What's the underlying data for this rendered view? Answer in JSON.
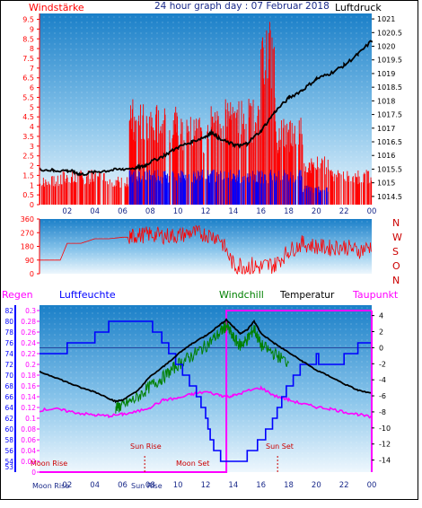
{
  "header": {
    "left_label": "Windstärke",
    "title": "24 hour graph day : 07 Februar 2018",
    "right_label": "Luftdruck"
  },
  "x_ticks": [
    "02",
    "04",
    "06",
    "08",
    "10",
    "12",
    "14",
    "16",
    "18",
    "20",
    "22",
    "00"
  ],
  "wind_direction_labels": [
    "N",
    "W",
    "S",
    "O",
    "N"
  ],
  "lower_header": {
    "regen": "Regen",
    "luftfeuchte": "Luftfeuchte",
    "windchill": "Windchill",
    "temperatur": "Temperatur",
    "taupunkt": "Taupunkt"
  },
  "annotations": {
    "moon_rise": "Moon Rise",
    "sun_rise": "Sun Rise",
    "moon_set": "Moon Set",
    "sun_set": "Sun Set",
    "bottom_moon_rise": "Moon Rise",
    "bottom_sun_rise": "Sun Rise"
  },
  "colors": {
    "chart_bg_top": "#1a7fc8",
    "chart_bg_bottom": "#e8f4fc",
    "wind": "#ff0000",
    "gust": "#0000ff",
    "pressure": "#000000",
    "humidity": "#0000ff",
    "temperature": "#000000",
    "windchill": "#008000",
    "dewpoint": "#ff00ff",
    "rain": "#ff00ff",
    "left_axis": "#ff0000",
    "rain_axis": "#0000ff"
  },
  "chart_data": [
    {
      "type": "line",
      "name": "wind-pressure",
      "x_range": [
        0,
        24
      ],
      "y_left_label": "Windstärke",
      "y_left_ticks": [
        "0",
        "0.5",
        "1",
        "1.5",
        "2",
        "2.5",
        "3",
        "3.5",
        "4",
        "4.5",
        "5",
        "5.5",
        "6",
        "6.5",
        "7",
        "7.5",
        "8",
        "8.5",
        "9",
        "9.5"
      ],
      "y_left_range": [
        0,
        9.8
      ],
      "y_right_label": "Luftdruck",
      "y_right_ticks": [
        "1014.5",
        "1015",
        "1015.5",
        "1016",
        "1016.5",
        "1017",
        "1017.5",
        "1018",
        "1018.5",
        "1019",
        "1019.5",
        "1020",
        "1020.5",
        "1021"
      ],
      "y_right_range": [
        1014.2,
        1021.2
      ],
      "series": [
        {
          "name": "Luftdruck",
          "x": [
            0,
            1,
            2,
            2.5,
            3,
            4,
            5,
            6,
            7,
            7.5,
            8,
            9,
            10,
            11,
            12,
            12.5,
            13,
            14,
            14.5,
            15,
            16,
            17,
            18,
            19,
            20,
            21,
            22,
            23,
            24
          ],
          "y": [
            1015.5,
            1015.45,
            1015.45,
            1015.4,
            1015.3,
            1015.4,
            1015.45,
            1015.5,
            1015.55,
            1015.6,
            1015.75,
            1016.0,
            1016.3,
            1016.5,
            1016.7,
            1016.85,
            1016.6,
            1016.4,
            1016.35,
            1016.45,
            1016.9,
            1017.6,
            1018.1,
            1018.4,
            1018.8,
            1019.0,
            1019.3,
            1019.7,
            1020.2
          ]
        }
      ],
      "wind_level_by_hour": [
        {
          "from": 0,
          "to": 1.5,
          "wind": 0,
          "gust": 1.5
        },
        {
          "from": 1.5,
          "to": 3,
          "wind": 0,
          "gust": 1.8
        },
        {
          "from": 3,
          "to": 5,
          "wind": 0,
          "gust": 1.8
        },
        {
          "from": 5,
          "to": 6.5,
          "wind": 0,
          "gust": 1.5
        },
        {
          "from": 6.5,
          "to": 8,
          "wind": 1.8,
          "gust": 5.5
        },
        {
          "from": 8,
          "to": 10,
          "wind": 1.8,
          "gust": 5.5
        },
        {
          "from": 10,
          "to": 12,
          "wind": 1.8,
          "gust": 4.5
        },
        {
          "from": 12,
          "to": 14,
          "wind": 1.8,
          "gust": 5.5
        },
        {
          "from": 14,
          "to": 16,
          "wind": 1.8,
          "gust": 5.5
        },
        {
          "from": 16,
          "to": 17,
          "wind": 1.8,
          "gust": 9.5
        },
        {
          "from": 17,
          "to": 19,
          "wind": 1.8,
          "gust": 4.5
        },
        {
          "from": 19,
          "to": 21,
          "wind": 1.0,
          "gust": 2.5
        },
        {
          "from": 21,
          "to": 22.5,
          "wind": 0,
          "gust": 1.8
        },
        {
          "from": 22.5,
          "to": 24,
          "wind": 0,
          "gust": 1.8
        }
      ]
    },
    {
      "type": "line",
      "name": "wind-direction",
      "x_range": [
        0,
        24
      ],
      "y_ticks": [
        "0",
        "90",
        "180",
        "270",
        "360"
      ],
      "y_range": [
        0,
        360
      ],
      "series": [
        {
          "name": "Windrichtung",
          "x": [
            0,
            1.5,
            2,
            3,
            4,
            5,
            6,
            6.5,
            7,
            8,
            9,
            10,
            11,
            12,
            13,
            14,
            15,
            16,
            17,
            18,
            19,
            20,
            21,
            22,
            23,
            24
          ],
          "y": [
            90,
            90,
            200,
            200,
            230,
            230,
            240,
            240,
            250,
            260,
            250,
            250,
            270,
            260,
            240,
            60,
            50,
            40,
            60,
            150,
            200,
            180,
            170,
            180,
            150,
            180
          ]
        }
      ]
    },
    {
      "type": "line",
      "name": "temperature-humidity",
      "x_range": [
        0,
        24
      ],
      "y_left1_ticks": [
        "53",
        "54",
        "56",
        "58",
        "60",
        "62",
        "64",
        "66",
        "68",
        "70",
        "72",
        "74",
        "76",
        "78",
        "80",
        "82"
      ],
      "y_left1_range": [
        52,
        83
      ],
      "y_left2_ticks": [
        "0",
        "0.02",
        "0.04",
        "0.06",
        "0.08",
        "0.1",
        "0.12",
        "0.14",
        "0.16",
        "0.18",
        "0.2",
        "0.22",
        "0.24",
        "0.26",
        "0.28",
        "0.3"
      ],
      "y_left2_range": [
        0,
        0.31
      ],
      "y_right_ticks": [
        "4",
        "2",
        "0",
        "-2",
        "-4",
        "-6",
        "-8",
        "-10",
        "-12",
        "-14"
      ],
      "y_right_range": [
        -15.5,
        5.3
      ],
      "series": [
        {
          "name": "Luftfeuchte",
          "x": [
            0,
            1,
            1.5,
            2,
            3,
            4,
            5,
            6,
            6.5,
            7,
            8,
            9,
            10,
            11,
            12,
            12.5,
            13,
            13.5,
            14,
            14.5,
            15,
            15.5,
            16,
            17,
            18,
            19,
            20,
            21,
            22,
            23,
            24
          ],
          "y": [
            73,
            73,
            74,
            75,
            76,
            77,
            79,
            80,
            80,
            79,
            79,
            76,
            72,
            68,
            62,
            57,
            55,
            53,
            54,
            53,
            55,
            56,
            58,
            62,
            68,
            72,
            73,
            72,
            73,
            75,
            76
          ]
        },
        {
          "name": "Temperatur",
          "x": [
            0,
            1,
            2,
            3,
            4,
            5,
            5.5,
            6,
            7,
            8,
            9,
            10,
            11,
            12,
            13,
            13.5,
            14,
            14.5,
            15,
            15.5,
            16,
            17,
            18,
            19,
            20,
            21,
            22,
            23,
            24
          ],
          "y": [
            -3.0,
            -3.6,
            -4.3,
            -5.0,
            -5.5,
            -6.3,
            -6.7,
            -6.5,
            -5.5,
            -3.6,
            -2.3,
            -0.8,
            0.5,
            1.5,
            2.8,
            3.5,
            2.6,
            1.8,
            2.2,
            3.3,
            1.8,
            0.5,
            -0.6,
            -1.7,
            -2.8,
            -3.6,
            -4.5,
            -5.3,
            -5.7
          ]
        },
        {
          "name": "Windchill",
          "x": [
            5.5,
            6,
            7,
            8,
            9,
            10,
            11,
            12,
            13,
            13.5,
            14,
            14.5,
            15,
            15.5,
            16,
            17,
            18
          ],
          "y": [
            -7.5,
            -7.2,
            -6.3,
            -4.8,
            -3.6,
            -2.1,
            -1.0,
            0.2,
            1.8,
            2.8,
            1.2,
            0.3,
            1.0,
            2.4,
            0.3,
            -0.8,
            -1.9
          ]
        },
        {
          "name": "Taupunkt",
          "x": [
            0,
            1,
            2,
            3,
            4,
            5,
            6,
            7,
            8,
            9,
            10,
            11,
            12,
            13,
            13.5,
            14,
            15,
            16,
            17,
            18,
            19,
            20,
            21,
            22,
            23,
            24
          ],
          "y": [
            -7.8,
            -7.6,
            -7.9,
            -8.2,
            -8.4,
            -8.5,
            -8.3,
            -8.0,
            -7.4,
            -6.5,
            -6.3,
            -5.8,
            -5.5,
            -5.9,
            -6.1,
            -6.0,
            -5.4,
            -5.0,
            -6.0,
            -6.5,
            -7.0,
            -7.4,
            -7.6,
            -8.0,
            -8.3,
            -8.7
          ]
        },
        {
          "name": "Regen",
          "x": [
            0,
            13.5,
            13.5,
            24
          ],
          "y": [
            0,
            0,
            0.3,
            0.3
          ]
        }
      ]
    }
  ]
}
